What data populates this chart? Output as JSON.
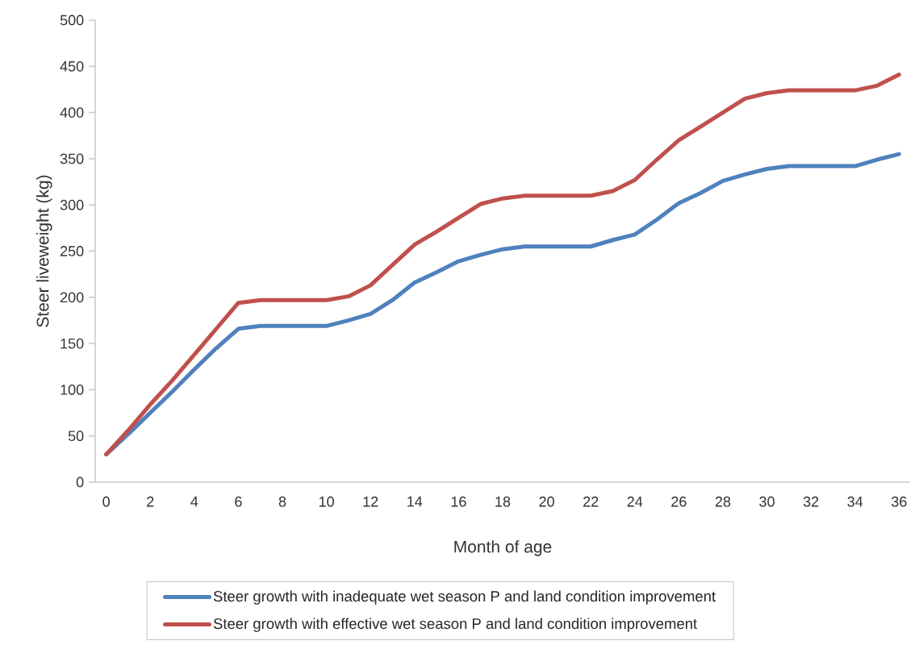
{
  "chart_data": {
    "type": "line",
    "xlabel": "Month of age",
    "ylabel": "Steer liveweight (kg)",
    "categories": [
      "0",
      null,
      "2",
      null,
      "4",
      null,
      "6",
      null,
      "8",
      null,
      "10",
      null,
      "12",
      null,
      "14",
      null,
      "16",
      null,
      "18",
      null,
      "20",
      null,
      "22",
      null,
      "24",
      null,
      "26",
      null,
      "28",
      null,
      "30",
      null,
      "32",
      null,
      "34",
      null,
      "36"
    ],
    "ylim": [
      0,
      500
    ],
    "yticks": [
      0,
      50,
      100,
      150,
      200,
      250,
      300,
      350,
      400,
      450,
      500
    ],
    "grid": false,
    "legend": "bottom",
    "marker": "none",
    "line_style": "solid",
    "series": [
      {
        "name": "Steer growth with inadequate wet season P and land condition improvement",
        "color": "#4f81bd",
        "values": [
          30,
          52,
          75,
          98,
          122,
          145,
          166,
          169,
          169,
          169,
          169,
          175,
          182,
          197,
          216,
          227,
          239,
          246,
          252,
          255,
          255,
          255,
          255,
          262,
          268,
          284,
          302,
          313,
          326,
          333,
          339,
          342,
          342,
          342,
          342,
          349,
          355
        ]
      },
      {
        "name": "Steer growth with effective wet season P and land condition improvement",
        "color": "#c0504d",
        "values": [
          30,
          56,
          84,
          110,
          138,
          166,
          194,
          197,
          197,
          197,
          197,
          201,
          213,
          235,
          257,
          271,
          286,
          301,
          307,
          310,
          310,
          310,
          310,
          315,
          327,
          349,
          370,
          385,
          400,
          415,
          421,
          424,
          424,
          424,
          424,
          429,
          441
        ]
      }
    ]
  }
}
